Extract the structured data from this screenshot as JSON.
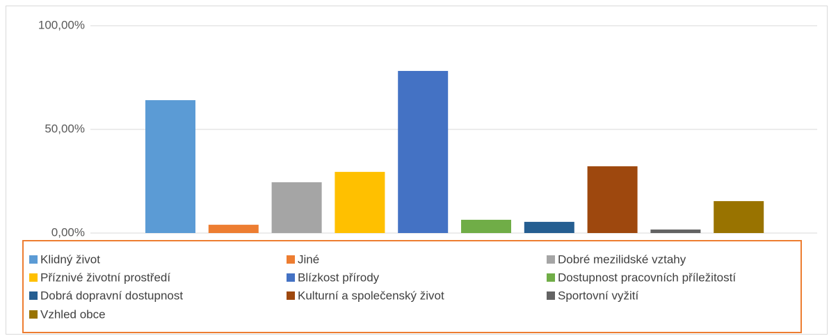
{
  "chart_data": {
    "type": "bar",
    "categories": [
      "Klidný život",
      "Jiné",
      "Dobré mezilidské vztahy",
      "Příznivé životní prostředí",
      "Blízkost přírody",
      "Dostupnost pracovních příležitostí",
      "Dobrá dopravní dostupnost",
      "Kulturní a společenský život",
      "Sportovní vyžití",
      "Vzhled obce"
    ],
    "values": [
      64.1,
      4.0,
      24.5,
      29.5,
      78.2,
      6.4,
      5.4,
      32.2,
      1.7,
      15.4
    ],
    "colors": [
      "#5b9bd5",
      "#ed7d31",
      "#a5a5a5",
      "#ffc000",
      "#4472c4",
      "#70ad47",
      "#255e91",
      "#9e480e",
      "#636363",
      "#997300"
    ],
    "ylim": [
      0,
      100
    ],
    "yticks": [
      {
        "value": 0,
        "label": "0,00%"
      },
      {
        "value": 50,
        "label": "50,00%"
      },
      {
        "value": 100,
        "label": "100,00%"
      }
    ],
    "grid": true,
    "legend": "bottom"
  }
}
